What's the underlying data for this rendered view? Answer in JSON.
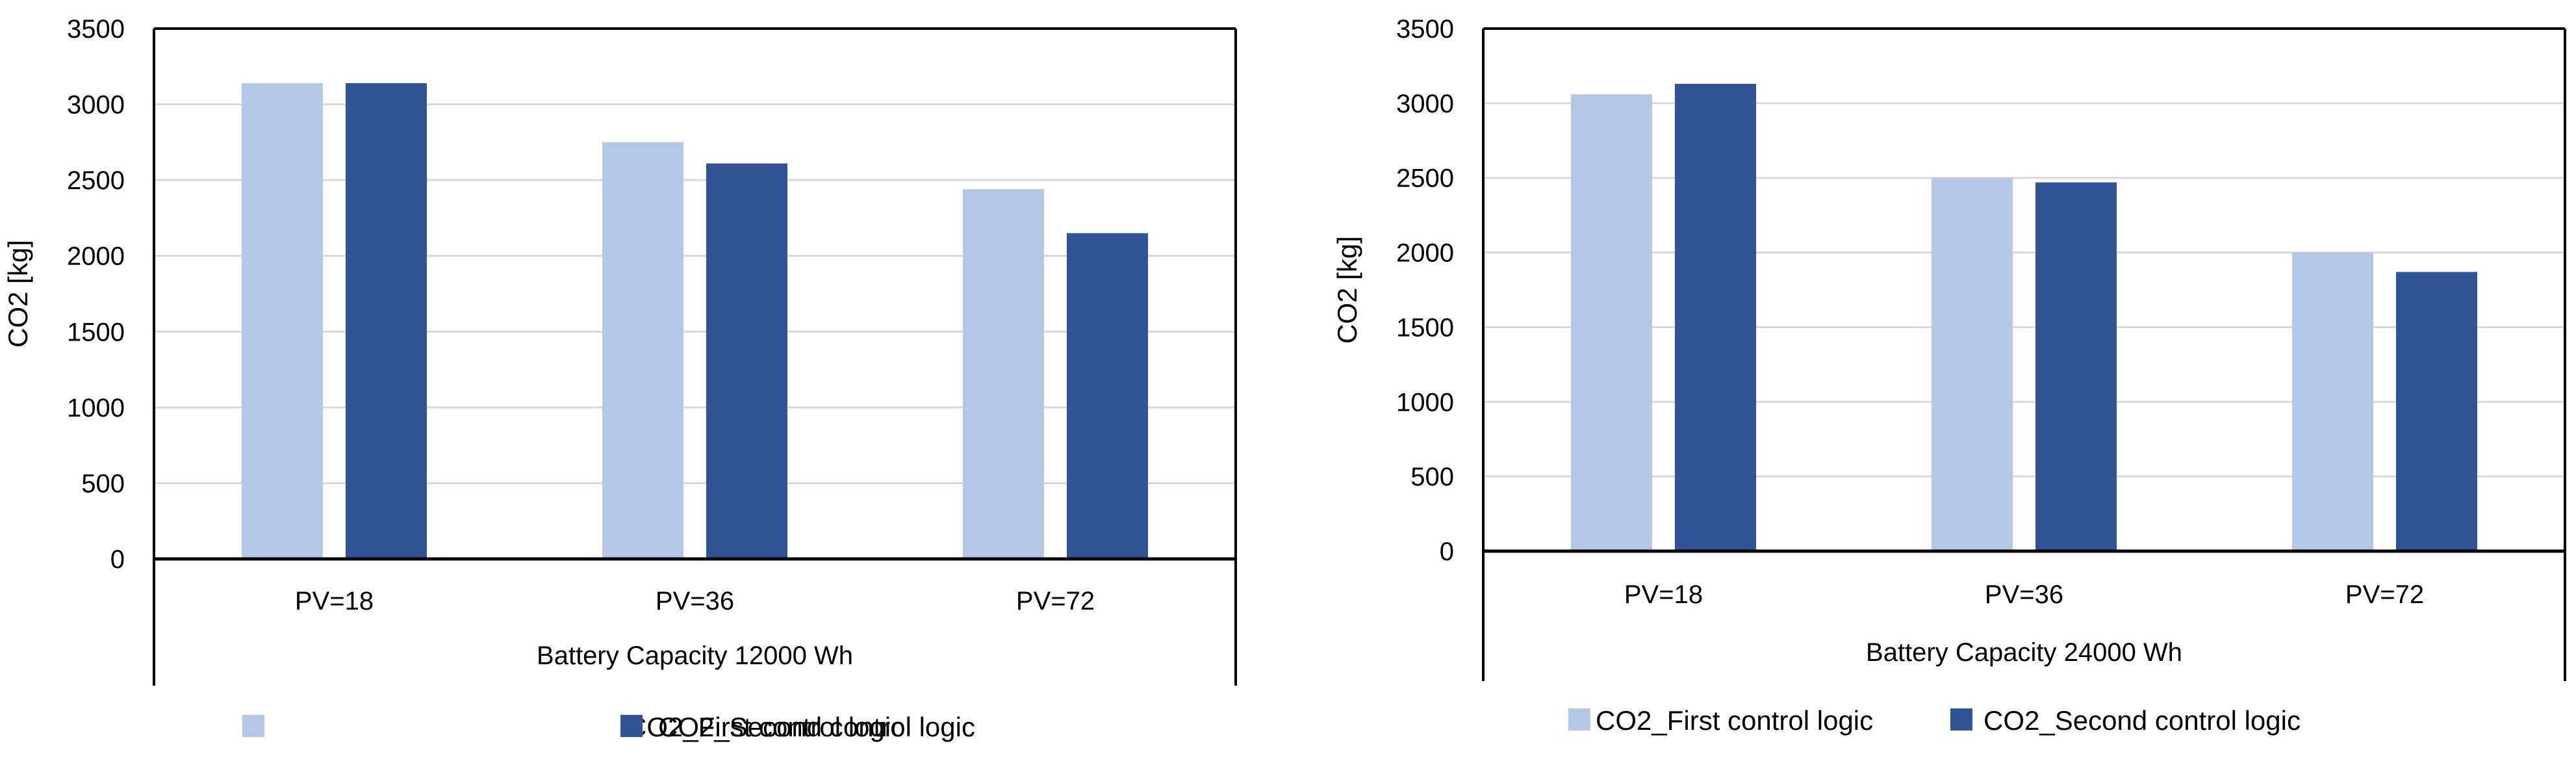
{
  "series_colors": [
    "#b4c7e7",
    "#2f5597"
  ],
  "chart_data": [
    {
      "type": "bar",
      "title": "",
      "ylabel": "CO2 [kg]",
      "xlabel": "Battery Capacity 12000 Wh",
      "categories": [
        "PV=18",
        "PV=36",
        "PV=72"
      ],
      "ylim": [
        0,
        3500
      ],
      "yticks": [
        0,
        500,
        1000,
        1500,
        2000,
        2500,
        3000,
        3500
      ],
      "grid": true,
      "legend_position": "bottom",
      "series": [
        {
          "name": "CO2_First control logic",
          "values": [
            3140,
            2750,
            2440
          ]
        },
        {
          "name": "CO2_Second control logic",
          "values": [
            3140,
            2610,
            2150
          ]
        }
      ]
    },
    {
      "type": "bar",
      "title": "",
      "ylabel": "CO2 [kg]",
      "xlabel": "Battery Capacity 24000 Wh",
      "categories": [
        "PV=18",
        "PV=36",
        "PV=72"
      ],
      "ylim": [
        0,
        3500
      ],
      "yticks": [
        0,
        500,
        1000,
        1500,
        2000,
        2500,
        3000,
        3500
      ],
      "grid": true,
      "legend_position": "bottom",
      "series": [
        {
          "name": "CO2_First control logic",
          "values": [
            3060,
            2500,
            2000
          ]
        },
        {
          "name": "CO2_Second control logic",
          "values": [
            3130,
            2470,
            1870
          ]
        }
      ]
    }
  ]
}
